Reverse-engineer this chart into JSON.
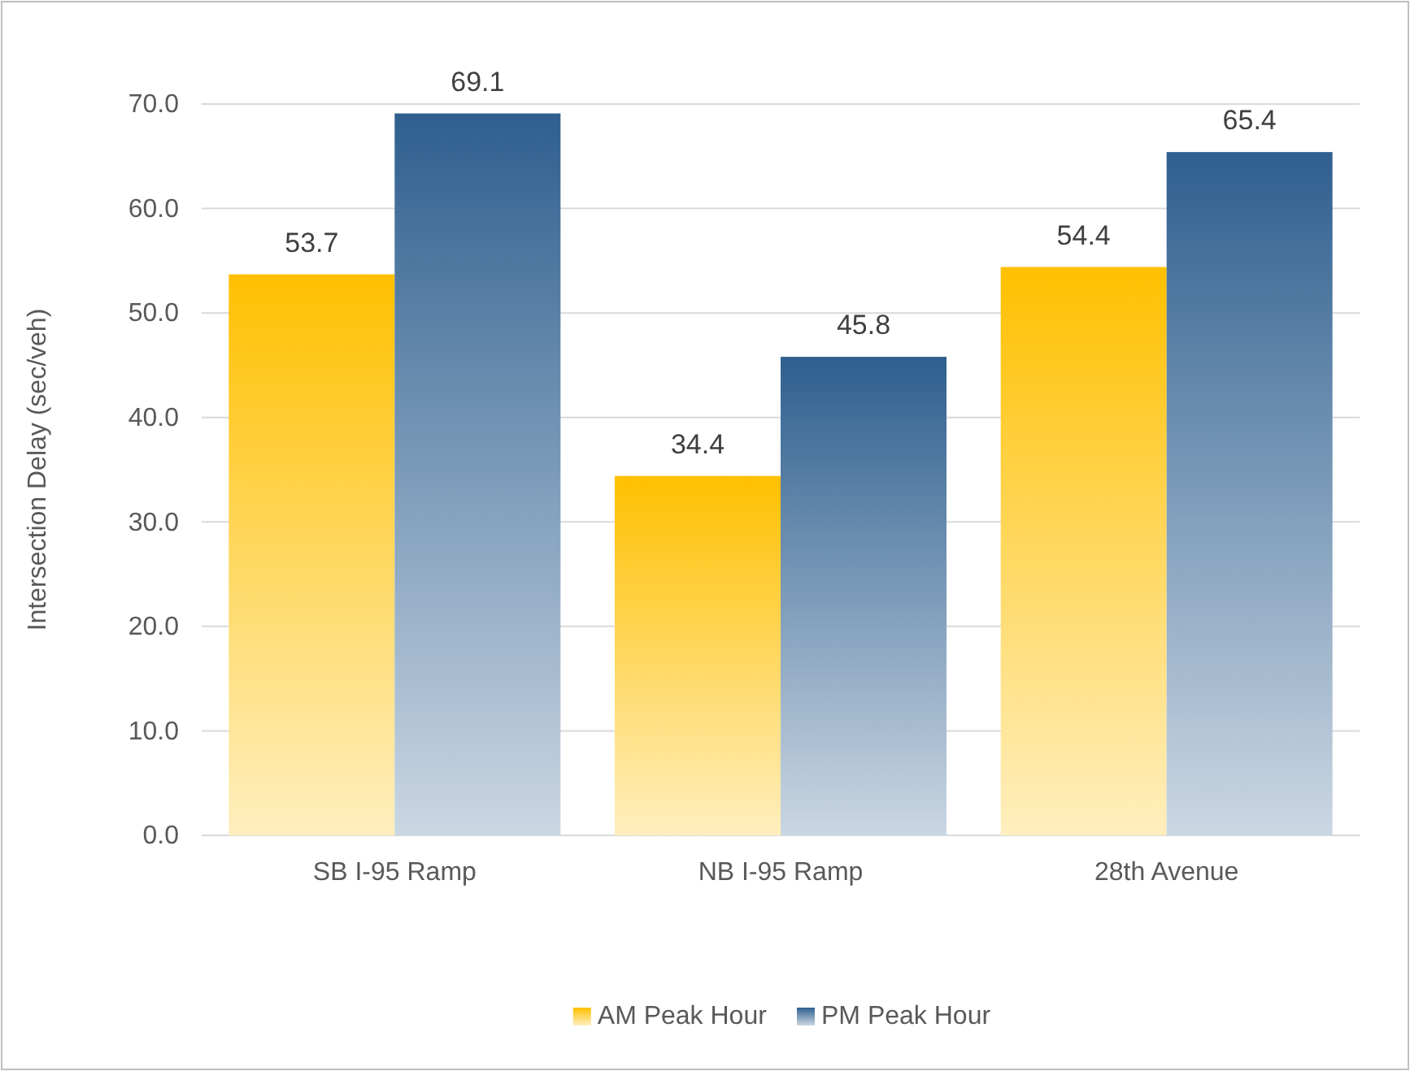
{
  "chart_data": {
    "type": "bar",
    "ylabel": "Intersection Delay (sec/veh)",
    "categories": [
      "SB I-95 Ramp",
      "NB I-95 Ramp",
      "28th Avenue"
    ],
    "series": [
      {
        "name": "AM Peak Hour",
        "color": "#ffc000",
        "values": [
          53.7,
          34.4,
          54.4
        ]
      },
      {
        "name": "PM Peak Hour",
        "color": "#2e5f8f",
        "values": [
          69.1,
          45.8,
          65.4
        ]
      }
    ],
    "ylim": [
      0,
      70
    ],
    "yticks": [
      {
        "value": 0,
        "label": "0.0"
      },
      {
        "value": 10,
        "label": "10.0"
      },
      {
        "value": 20,
        "label": "20.0"
      },
      {
        "value": 30,
        "label": "30.0"
      },
      {
        "value": 40,
        "label": "40.0"
      },
      {
        "value": 50,
        "label": "50.0"
      },
      {
        "value": 60,
        "label": "60.0"
      },
      {
        "value": 70,
        "label": "70.0"
      }
    ],
    "grid": "y",
    "data_labels": true,
    "legend": "bottom"
  }
}
